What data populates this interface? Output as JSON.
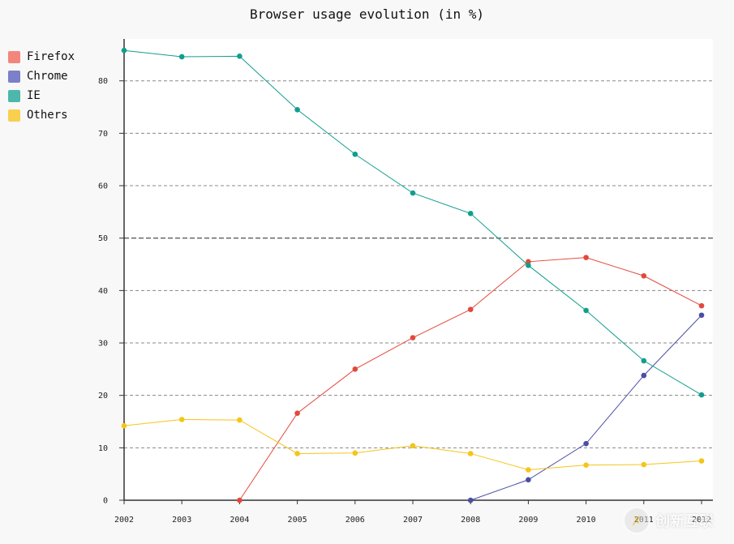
{
  "chart_data": {
    "type": "line",
    "title": "Browser usage evolution (in %)",
    "xlabel": "",
    "ylabel": "",
    "x": [
      "2002",
      "2003",
      "2004",
      "2005",
      "2006",
      "2007",
      "2008",
      "2009",
      "2010",
      "2011",
      "2012"
    ],
    "ylim": [
      0,
      88
    ],
    "yticks": [
      0,
      10,
      20,
      30,
      40,
      50,
      60,
      70,
      80
    ],
    "major_ytick": 50,
    "legend_position": "left",
    "series": [
      {
        "name": "Firefox",
        "color": "#e2493c",
        "legend_color": "#f2867d",
        "values": [
          null,
          null,
          0,
          16.6,
          25,
          31,
          36.4,
          45.5,
          46.3,
          42.8,
          37.1
        ]
      },
      {
        "name": "Chrome",
        "color": "#4a4fa3",
        "legend_color": "#7b80c9",
        "values": [
          null,
          null,
          null,
          null,
          null,
          null,
          0,
          3.9,
          10.8,
          23.8,
          35.3
        ]
      },
      {
        "name": "IE",
        "color": "#109e8e",
        "legend_color": "#4bb8ab",
        "values": [
          85.8,
          84.6,
          84.7,
          74.5,
          66,
          58.6,
          54.7,
          44.8,
          36.2,
          26.6,
          20.1
        ]
      },
      {
        "name": "Others",
        "color": "#f5c518",
        "legend_color": "#f8d04e",
        "values": [
          14.2,
          15.4,
          15.3,
          8.9,
          9,
          10.4,
          8.9,
          5.8,
          6.7,
          6.8,
          7.5
        ]
      }
    ]
  },
  "watermark": {
    "text": "创新互联",
    "mark": "✗"
  }
}
